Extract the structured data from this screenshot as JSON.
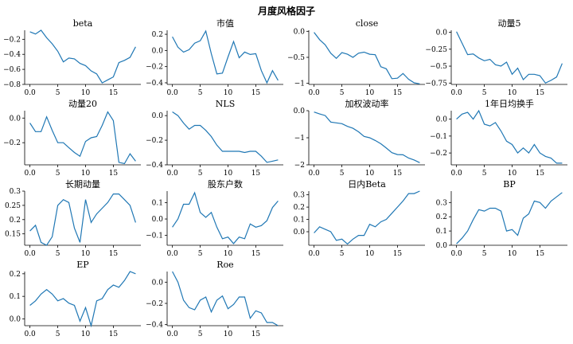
{
  "figure_title": "月度风格因子",
  "chart_data": [
    {
      "type": "line",
      "title": "beta",
      "x": [
        0,
        1,
        2,
        3,
        4,
        5,
        6,
        7,
        8,
        9,
        10,
        11,
        12,
        13,
        14,
        15,
        16,
        17,
        18,
        19
      ],
      "values": [
        -0.1,
        -0.13,
        -0.08,
        -0.18,
        -0.26,
        -0.36,
        -0.5,
        -0.45,
        -0.46,
        -0.52,
        -0.55,
        -0.62,
        -0.66,
        -0.78,
        -0.74,
        -0.7,
        -0.51,
        -0.48,
        -0.44,
        -0.3
      ],
      "ylim": [
        -0.8,
        -0.08
      ],
      "yticks": [
        -0.8,
        -0.6,
        -0.4,
        -0.2
      ],
      "xticks": [
        0,
        5,
        10,
        15
      ]
    },
    {
      "type": "line",
      "title": "市值",
      "x": [
        0,
        1,
        2,
        3,
        4,
        5,
        6,
        7,
        8,
        9,
        10,
        11,
        12,
        13,
        14,
        15,
        16,
        17,
        18,
        19
      ],
      "values": [
        0.17,
        0.04,
        -0.02,
        0.01,
        0.09,
        0.12,
        0.24,
        -0.04,
        -0.29,
        -0.28,
        -0.08,
        0.11,
        -0.09,
        -0.02,
        -0.05,
        -0.04,
        -0.25,
        -0.4,
        -0.25,
        -0.37
      ],
      "ylim": [
        -0.42,
        0.25
      ],
      "yticks": [
        -0.4,
        -0.2,
        0.0,
        0.2
      ],
      "xticks": [
        0,
        5,
        10,
        15
      ]
    },
    {
      "type": "line",
      "title": "close",
      "x": [
        0,
        1,
        2,
        3,
        4,
        5,
        6,
        7,
        8,
        9,
        10,
        11,
        12,
        13,
        14,
        15,
        16,
        17,
        18,
        19
      ],
      "values": [
        -0.02,
        -0.16,
        -0.26,
        -0.42,
        -0.52,
        -0.41,
        -0.44,
        -0.5,
        -0.42,
        -0.4,
        -0.44,
        -0.45,
        -0.68,
        -0.72,
        -0.91,
        -0.9,
        -0.81,
        -0.92,
        -0.99,
        -1.01
      ],
      "ylim": [
        -1.02,
        0.02
      ],
      "yticks": [
        -1.0,
        -0.5,
        0.0
      ],
      "xticks": [
        0,
        5,
        10,
        15
      ]
    },
    {
      "type": "line",
      "title": "动量5",
      "x": [
        0,
        1,
        2,
        3,
        4,
        5,
        6,
        7,
        8,
        9,
        10,
        11,
        12,
        13,
        14,
        15,
        16,
        17,
        18,
        19
      ],
      "values": [
        0.01,
        -0.16,
        -0.33,
        -0.32,
        -0.38,
        -0.42,
        -0.4,
        -0.48,
        -0.5,
        -0.44,
        -0.62,
        -0.53,
        -0.7,
        -0.62,
        -0.62,
        -0.64,
        -0.75,
        -0.71,
        -0.66,
        -0.46
      ],
      "ylim": [
        -0.77,
        0.03
      ],
      "yticks": [
        -0.75,
        -0.5,
        -0.25,
        0.0
      ],
      "xticks": [
        0,
        5,
        10,
        15
      ]
    },
    {
      "type": "line",
      "title": "动量20",
      "x": [
        0,
        1,
        2,
        3,
        4,
        5,
        6,
        7,
        8,
        9,
        10,
        11,
        12,
        13,
        14,
        15,
        16,
        17,
        18,
        19
      ],
      "values": [
        -0.04,
        -0.11,
        -0.11,
        0.01,
        -0.1,
        -0.2,
        -0.2,
        -0.24,
        -0.28,
        -0.31,
        -0.19,
        -0.16,
        -0.15,
        -0.06,
        0.05,
        -0.02,
        -0.36,
        -0.37,
        -0.29,
        -0.35
      ],
      "ylim": [
        -0.38,
        0.06
      ],
      "yticks": [
        -0.2,
        0.0
      ],
      "xticks": [
        0,
        5,
        10,
        15
      ]
    },
    {
      "type": "line",
      "title": "NLS",
      "x": [
        0,
        1,
        2,
        3,
        4,
        5,
        6,
        7,
        8,
        9,
        10,
        11,
        12,
        13,
        14,
        15,
        16,
        17,
        18,
        19
      ],
      "values": [
        0.03,
        0.0,
        -0.06,
        -0.11,
        -0.08,
        -0.08,
        -0.12,
        -0.17,
        -0.24,
        -0.29,
        -0.29,
        -0.29,
        -0.29,
        -0.3,
        -0.29,
        -0.29,
        -0.33,
        -0.38,
        -0.37,
        -0.36
      ],
      "ylim": [
        -0.4,
        0.04
      ],
      "yticks": [
        -0.4,
        -0.2,
        0.0
      ],
      "xticks": [
        0,
        5,
        10,
        15
      ]
    },
    {
      "type": "line",
      "title": "加权波动率",
      "x": [
        0,
        1,
        2,
        3,
        4,
        5,
        6,
        7,
        8,
        9,
        10,
        11,
        12,
        13,
        14,
        15,
        16,
        17,
        18,
        19
      ],
      "values": [
        -0.05,
        -0.12,
        -0.18,
        -0.42,
        -0.45,
        -0.48,
        -0.58,
        -0.65,
        -0.78,
        -0.95,
        -1.0,
        -1.1,
        -1.22,
        -1.38,
        -1.55,
        -1.62,
        -1.63,
        -1.75,
        -1.82,
        -1.92
      ],
      "ylim": [
        -2.0,
        0.0
      ],
      "yticks": [
        -2,
        -1,
        0
      ],
      "xticks": [
        0,
        5,
        10,
        15
      ]
    },
    {
      "type": "line",
      "title": "1年日均换手",
      "x": [
        0,
        1,
        2,
        3,
        4,
        5,
        6,
        7,
        8,
        9,
        10,
        11,
        12,
        13,
        14,
        15,
        16,
        17,
        18,
        19
      ],
      "values": [
        0.0,
        0.03,
        0.04,
        0.0,
        0.05,
        -0.03,
        -0.04,
        -0.02,
        -0.07,
        -0.13,
        -0.15,
        -0.2,
        -0.17,
        -0.2,
        -0.15,
        -0.2,
        -0.22,
        -0.23,
        -0.26,
        -0.26
      ],
      "ylim": [
        -0.27,
        0.05
      ],
      "yticks": [
        -0.2,
        -0.1,
        0.0
      ],
      "xticks": [
        0,
        5,
        10,
        15
      ]
    },
    {
      "type": "line",
      "title": "长期动量",
      "x": [
        0,
        1,
        2,
        3,
        4,
        5,
        6,
        7,
        8,
        9,
        10,
        11,
        12,
        13,
        14,
        15,
        16,
        17,
        18,
        19
      ],
      "values": [
        0.16,
        0.18,
        0.12,
        0.11,
        0.14,
        0.25,
        0.27,
        0.26,
        0.17,
        0.12,
        0.27,
        0.19,
        0.22,
        0.24,
        0.26,
        0.29,
        0.29,
        0.27,
        0.25,
        0.19
      ],
      "ylim": [
        0.11,
        0.3
      ],
      "yticks": [
        0.15,
        0.2,
        0.25,
        0.3
      ],
      "xticks": [
        0,
        5,
        10,
        15
      ]
    },
    {
      "type": "line",
      "title": "股东户数",
      "x": [
        0,
        1,
        2,
        3,
        4,
        5,
        6,
        7,
        8,
        9,
        10,
        11,
        12,
        13,
        14,
        15,
        16,
        17,
        18,
        19
      ],
      "values": [
        -0.05,
        0.0,
        0.09,
        0.09,
        0.16,
        0.04,
        0.01,
        0.04,
        -0.05,
        -0.12,
        -0.11,
        -0.15,
        -0.11,
        -0.12,
        -0.03,
        -0.05,
        -0.04,
        -0.01,
        0.07,
        0.11
      ],
      "ylim": [
        -0.16,
        0.17
      ],
      "yticks": [
        -0.1,
        0.0,
        0.1
      ],
      "xticks": [
        0,
        5,
        10,
        15
      ]
    },
    {
      "type": "line",
      "title": "日内Beta",
      "x": [
        0,
        1,
        2,
        3,
        4,
        5,
        6,
        7,
        8,
        9,
        10,
        11,
        12,
        13,
        14,
        15,
        16,
        17,
        18,
        19
      ],
      "values": [
        -0.01,
        0.04,
        0.02,
        0.0,
        -0.07,
        -0.06,
        -0.1,
        -0.06,
        -0.03,
        -0.03,
        0.06,
        0.04,
        0.08,
        0.1,
        0.15,
        0.2,
        0.25,
        0.31,
        0.31,
        0.33
      ],
      "ylim": [
        -0.11,
        0.33
      ],
      "yticks": [
        0.0,
        0.1,
        0.2,
        0.3
      ],
      "xticks": [
        0,
        5,
        10,
        15
      ]
    },
    {
      "type": "line",
      "title": "BP",
      "x": [
        0,
        1,
        2,
        3,
        4,
        5,
        6,
        7,
        8,
        9,
        10,
        11,
        12,
        13,
        14,
        15,
        16,
        17,
        18,
        19
      ],
      "values": [
        0.01,
        0.05,
        0.1,
        0.18,
        0.25,
        0.24,
        0.26,
        0.26,
        0.24,
        0.1,
        0.11,
        0.07,
        0.19,
        0.22,
        0.31,
        0.3,
        0.26,
        0.31,
        0.34,
        0.37
      ],
      "ylim": [
        0.0,
        0.38
      ],
      "yticks": [
        0.0,
        0.1,
        0.2,
        0.3
      ],
      "xticks": [
        0,
        5,
        10,
        15
      ]
    },
    {
      "type": "line",
      "title": "EP",
      "x": [
        0,
        1,
        2,
        3,
        4,
        5,
        6,
        7,
        8,
        9,
        10,
        11,
        12,
        13,
        14,
        15,
        16,
        17,
        18,
        19
      ],
      "values": [
        0.06,
        0.08,
        0.11,
        0.13,
        0.11,
        0.08,
        0.09,
        0.07,
        0.06,
        -0.01,
        0.05,
        -0.03,
        0.08,
        0.09,
        0.13,
        0.15,
        0.14,
        0.17,
        0.21,
        0.2
      ],
      "ylim": [
        -0.03,
        0.21
      ],
      "yticks": [
        0.0,
        0.1,
        0.2
      ],
      "xticks": [
        0,
        5,
        10,
        15
      ]
    },
    {
      "type": "line",
      "title": "Roe",
      "x": [
        0,
        1,
        2,
        3,
        4,
        5,
        6,
        7,
        8,
        9,
        10,
        11,
        12,
        13,
        14,
        15,
        16,
        17,
        18,
        19
      ],
      "values": [
        0.1,
        0.0,
        -0.17,
        -0.24,
        -0.26,
        -0.17,
        -0.14,
        -0.28,
        -0.17,
        -0.13,
        -0.25,
        -0.21,
        -0.14,
        -0.14,
        -0.34,
        -0.27,
        -0.29,
        -0.38,
        -0.38,
        -0.41
      ],
      "ylim": [
        -0.41,
        0.1
      ],
      "yticks": [
        -0.4,
        -0.2,
        0.0
      ],
      "xticks": [
        0,
        5,
        10,
        15
      ]
    }
  ]
}
